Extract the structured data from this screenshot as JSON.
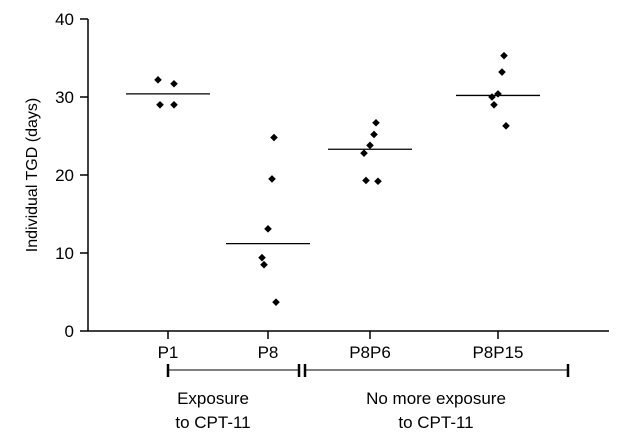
{
  "chart_data": {
    "type": "scatter",
    "ylabel": "Individual TGD (days)",
    "ylim": [
      0,
      40
    ],
    "yticks": [
      0,
      10,
      20,
      30,
      40
    ],
    "grid": false,
    "categories": [
      "P1",
      "P8",
      "P8P6",
      "P8P15"
    ],
    "series": [
      {
        "category": "P1",
        "median": 30.4,
        "points": [
          32.2,
          31.7,
          29.0,
          29.0
        ]
      },
      {
        "category": "P8",
        "median": 11.2,
        "points": [
          24.8,
          19.5,
          13.1,
          9.4,
          8.5,
          3.7
        ]
      },
      {
        "category": "P8P6",
        "median": 23.3,
        "points": [
          26.7,
          25.2,
          23.8,
          22.8,
          19.3,
          19.2
        ]
      },
      {
        "category": "P8P15",
        "median": 30.2,
        "points": [
          35.3,
          33.2,
          30.4,
          30.0,
          29.0,
          26.3
        ]
      }
    ],
    "groups": [
      {
        "line1": "Exposure",
        "line2": "to CPT-11"
      },
      {
        "line1": "No more exposure",
        "line2": "to CPT-11"
      }
    ]
  }
}
